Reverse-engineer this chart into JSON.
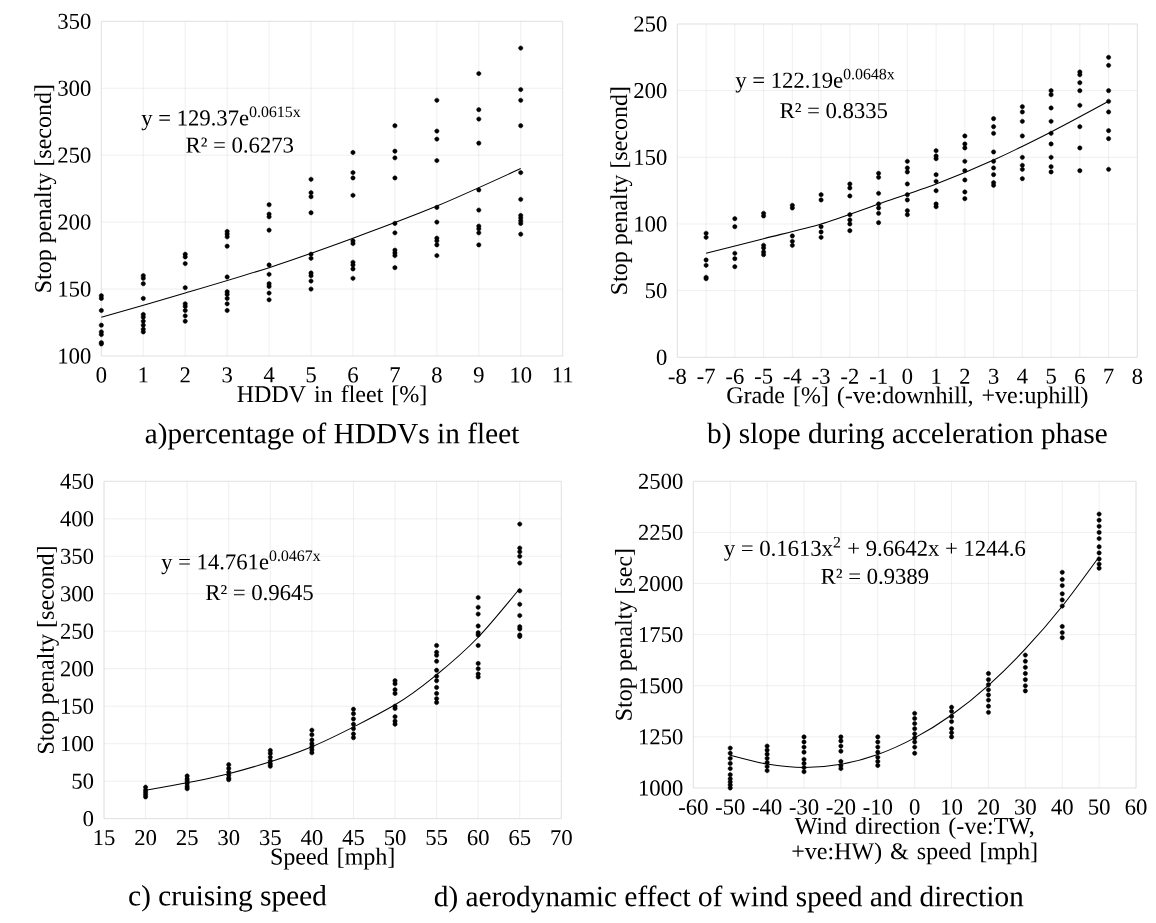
{
  "chart_data": [
    {
      "type": "scatter",
      "title": "a)percentage of HDDVs in fleet",
      "xlabel": "HDDV in fleet [%]",
      "ylabel": "Stop penalty [second]",
      "annotations": [
        "y = 129.37e$^{0.0615x}$",
        "R² = 0.6273"
      ],
      "xlim": [
        0,
        11
      ],
      "xticks": [
        0,
        1,
        2,
        3,
        4,
        5,
        6,
        7,
        8,
        9,
        10,
        11
      ],
      "ylim": [
        100,
        350
      ],
      "yticks": [
        100,
        150,
        200,
        250,
        300,
        350
      ],
      "grid": true,
      "series": [
        {
          "marker": "circle",
          "color": "#000000",
          "x": [
            0,
            0,
            0,
            0,
            0,
            0,
            0,
            0,
            1,
            1,
            1,
            1,
            1,
            1,
            1,
            1,
            1,
            1,
            2,
            2,
            2,
            2,
            2,
            2,
            2,
            2,
            2,
            3,
            3,
            3,
            3,
            3,
            3,
            3,
            3,
            3,
            3,
            4,
            4,
            4,
            4,
            4,
            4,
            4,
            4,
            4,
            4,
            5,
            5,
            5,
            5,
            5,
            5,
            5,
            5,
            5,
            5,
            6,
            6,
            6,
            6,
            6,
            6,
            6,
            6,
            6,
            6,
            7,
            7,
            7,
            7,
            7,
            7,
            7,
            7,
            7,
            7,
            8,
            8,
            8,
            8,
            8,
            8,
            8,
            8,
            8,
            8,
            9,
            9,
            9,
            9,
            9,
            9,
            9,
            9,
            9,
            9,
            10,
            10,
            10,
            10,
            10,
            10,
            10,
            10,
            10,
            10,
            10
          ],
          "values": [
            145,
            143,
            134,
            123,
            118,
            116,
            110,
            109,
            160,
            158,
            154,
            143,
            131,
            129,
            126,
            123,
            120,
            118,
            176,
            174,
            169,
            151,
            139,
            137,
            134,
            130,
            126,
            193,
            191,
            189,
            182,
            159,
            148,
            146,
            143,
            139,
            134,
            213,
            206,
            204,
            194,
            168,
            161,
            154,
            152,
            147,
            142,
            232,
            222,
            219,
            207,
            176,
            173,
            162,
            160,
            156,
            150,
            252,
            237,
            233,
            220,
            186,
            184,
            170,
            168,
            165,
            158,
            272,
            253,
            248,
            233,
            199,
            192,
            179,
            177,
            175,
            166,
            291,
            268,
            262,
            246,
            211,
            200,
            188,
            186,
            183,
            175,
            311,
            284,
            277,
            259,
            224,
            209,
            197,
            195,
            192,
            183,
            330,
            299,
            291,
            272,
            237,
            217,
            205,
            203,
            201,
            199,
            191
          ]
        },
        {
          "type": "line",
          "marker": "none",
          "color": "#000000",
          "x": [
            0,
            2,
            4,
            6,
            8,
            10
          ],
          "values": [
            129,
            147,
            166,
            188,
            212,
            240
          ]
        }
      ]
    },
    {
      "type": "scatter",
      "title": "b) slope during acceleration phase",
      "xlabel": "Grade [%] (-ve:downhill, +ve:uphill)",
      "ylabel": "Stop penalty [second]",
      "annotations": [
        "y = 122.19e$^{0.0648x}$",
        "R² = 0.8335"
      ],
      "xlim": [
        -8,
        8
      ],
      "xticks": [
        -8,
        -7,
        -6,
        -5,
        -4,
        -3,
        -2,
        -1,
        0,
        1,
        2,
        3,
        4,
        5,
        6,
        7,
        8
      ],
      "ylim": [
        0,
        250
      ],
      "yticks": [
        0,
        50,
        100,
        150,
        200,
        250
      ],
      "grid": true,
      "series": [
        {
          "marker": "circle",
          "color": "#000000",
          "x": [
            -7,
            -7,
            -7,
            -7,
            -7,
            -7,
            -6,
            -6,
            -6,
            -6,
            -6,
            -5,
            -5,
            -5,
            -5,
            -5,
            -5,
            -4,
            -4,
            -4,
            -4,
            -4,
            -3,
            -3,
            -3,
            -3,
            -3,
            -2,
            -2,
            -2,
            -2,
            -2,
            -2,
            -2,
            -1,
            -1,
            -1,
            -1,
            -1,
            -1,
            -1,
            0,
            0,
            0,
            0,
            0,
            0,
            0,
            0,
            1,
            1,
            1,
            1,
            1,
            1,
            1,
            1,
            2,
            2,
            2,
            2,
            2,
            2,
            2,
            2,
            3,
            3,
            3,
            3,
            3,
            3,
            3,
            3,
            3,
            4,
            4,
            4,
            4,
            4,
            4,
            4,
            4,
            5,
            5,
            5,
            5,
            5,
            5,
            5,
            5,
            5,
            6,
            6,
            6,
            6,
            6,
            6,
            6,
            6,
            7,
            7,
            7,
            7,
            7,
            7,
            7,
            7
          ],
          "values": [
            93,
            90,
            73,
            69,
            60,
            59,
            104,
            98,
            78,
            74,
            68,
            108,
            106,
            84,
            82,
            79,
            77,
            114,
            112,
            91,
            87,
            84,
            122,
            118,
            98,
            94,
            90,
            130,
            127,
            121,
            107,
            103,
            100,
            95,
            138,
            135,
            123,
            115,
            112,
            108,
            101,
            147,
            142,
            139,
            130,
            122,
            118,
            110,
            107,
            155,
            151,
            149,
            137,
            132,
            125,
            115,
            113,
            166,
            160,
            157,
            147,
            140,
            133,
            124,
            119,
            179,
            173,
            168,
            154,
            147,
            142,
            137,
            131,
            129,
            188,
            184,
            177,
            166,
            150,
            144,
            141,
            134,
            200,
            197,
            187,
            177,
            168,
            160,
            150,
            143,
            139,
            214,
            212,
            206,
            200,
            189,
            173,
            157,
            140,
            225,
            219,
            200,
            192,
            184,
            170,
            164,
            141
          ]
        },
        {
          "type": "line",
          "marker": "none",
          "color": "#000000",
          "x": [
            -7,
            -5,
            -3,
            -1,
            1,
            3,
            5,
            7
          ],
          "values": [
            78,
            89,
            100,
            115,
            130,
            148,
            169,
            192
          ]
        }
      ]
    },
    {
      "type": "scatter",
      "title": "c) cruising speed",
      "xlabel": "Speed [mph]",
      "ylabel": "Stop penalty [second]",
      "annotations": [
        "y = 14.761e$^{0.0467x}$",
        "R² = 0.9645"
      ],
      "xlim": [
        15,
        70
      ],
      "xticks": [
        15,
        20,
        25,
        30,
        35,
        40,
        45,
        50,
        55,
        60,
        65,
        70
      ],
      "ylim": [
        0,
        450
      ],
      "yticks": [
        0,
        50,
        100,
        150,
        200,
        250,
        300,
        350,
        400,
        450
      ],
      "grid": true,
      "series": [
        {
          "marker": "circle",
          "color": "#000000",
          "x": [
            20,
            20,
            20,
            20,
            20,
            25,
            25,
            25,
            25,
            25,
            25,
            30,
            30,
            30,
            30,
            30,
            30,
            35,
            35,
            35,
            35,
            35,
            35,
            40,
            40,
            40,
            40,
            40,
            40,
            40,
            45,
            45,
            45,
            45,
            45,
            45,
            45,
            50,
            50,
            50,
            50,
            50,
            50,
            50,
            50,
            50,
            55,
            55,
            55,
            55,
            55,
            55,
            55,
            55,
            55,
            55,
            55,
            60,
            60,
            60,
            60,
            60,
            60,
            60,
            60,
            60,
            60,
            60,
            65,
            65,
            65,
            65,
            65,
            65,
            65,
            65,
            65,
            65,
            65,
            65
          ],
          "values": [
            42,
            38,
            35,
            32,
            29,
            57,
            53,
            50,
            47,
            43,
            40,
            72,
            67,
            62,
            58,
            54,
            52,
            91,
            87,
            82,
            77,
            73,
            70,
            118,
            112,
            105,
            100,
            96,
            92,
            88,
            146,
            140,
            133,
            126,
            120,
            113,
            108,
            184,
            180,
            172,
            167,
            150,
            147,
            136,
            130,
            126,
            231,
            222,
            218,
            210,
            198,
            190,
            184,
            175,
            167,
            160,
            155,
            295,
            282,
            273,
            257,
            248,
            245,
            231,
            207,
            200,
            193,
            189,
            393,
            361,
            356,
            350,
            341,
            304,
            286,
            271,
            256,
            253,
            245,
            243
          ]
        },
        {
          "type": "line",
          "marker": "none",
          "color": "#000000",
          "x": [
            20,
            30,
            40,
            50,
            55,
            60,
            65
          ],
          "values": [
            38,
            60,
            96,
            152,
            192,
            242,
            307
          ]
        }
      ]
    },
    {
      "type": "scatter",
      "title": "d) aerodynamic effect of wind speed and direction",
      "xlabel": "Wind direction (-ve:TW, +ve:HW) & speed [mph]",
      "ylabel": "Stop penalty [sec]",
      "annotations": [
        "y = 0.1613x$^{2}$ + 9.6642x + 1244.6",
        "R² = 0.9389"
      ],
      "xlim": [
        -60,
        60
      ],
      "xticks": [
        -60,
        -50,
        -40,
        -30,
        -20,
        -10,
        0,
        10,
        20,
        30,
        40,
        50,
        60
      ],
      "ylim": [
        1000,
        2500
      ],
      "yticks": [
        1000,
        1250,
        1500,
        1750,
        2000,
        2250,
        2500
      ],
      "grid": true,
      "series": [
        {
          "marker": "circle",
          "color": "#000000",
          "x": [
            -50,
            -50,
            -50,
            -50,
            -50,
            -50,
            -50,
            -50,
            -50,
            -50,
            -40,
            -40,
            -40,
            -40,
            -40,
            -40,
            -40,
            -30,
            -30,
            -30,
            -30,
            -30,
            -30,
            -30,
            -30,
            -20,
            -20,
            -20,
            -20,
            -20,
            -20,
            -20,
            -10,
            -10,
            -10,
            -10,
            -10,
            -10,
            -10,
            0,
            0,
            0,
            0,
            0,
            0,
            0,
            0,
            0,
            10,
            10,
            10,
            10,
            10,
            10,
            10,
            20,
            20,
            20,
            20,
            20,
            20,
            20,
            20,
            30,
            30,
            30,
            30,
            30,
            30,
            30,
            40,
            40,
            40,
            40,
            40,
            40,
            40,
            40,
            40,
            50,
            50,
            50,
            50,
            50,
            50,
            50,
            50,
            50,
            50
          ],
          "values": [
            1195,
            1170,
            1145,
            1120,
            1095,
            1065,
            1045,
            1030,
            1015,
            1000,
            1205,
            1185,
            1165,
            1145,
            1125,
            1105,
            1085,
            1250,
            1225,
            1200,
            1175,
            1140,
            1120,
            1100,
            1080,
            1250,
            1230,
            1205,
            1180,
            1130,
            1110,
            1095,
            1250,
            1225,
            1200,
            1175,
            1150,
            1130,
            1110,
            1365,
            1340,
            1315,
            1290,
            1265,
            1245,
            1225,
            1200,
            1170,
            1395,
            1375,
            1350,
            1325,
            1290,
            1270,
            1250,
            1560,
            1530,
            1505,
            1480,
            1455,
            1430,
            1400,
            1370,
            1650,
            1620,
            1590,
            1560,
            1530,
            1500,
            1475,
            2055,
            2020,
            1990,
            1950,
            1920,
            1890,
            1790,
            1760,
            1735,
            2340,
            2310,
            2280,
            2250,
            2220,
            2180,
            2150,
            2120,
            2095,
            2075
          ]
        },
        {
          "type": "line",
          "marker": "none",
          "color": "#000000",
          "x": [
            -50,
            -40,
            -30,
            -20,
            -10,
            0,
            10,
            20,
            30,
            40,
            50
          ],
          "values": [
            1160,
            1117,
            1100,
            1116,
            1164,
            1245,
            1357,
            1502,
            1680,
            1889,
            2131
          ]
        }
      ]
    }
  ]
}
